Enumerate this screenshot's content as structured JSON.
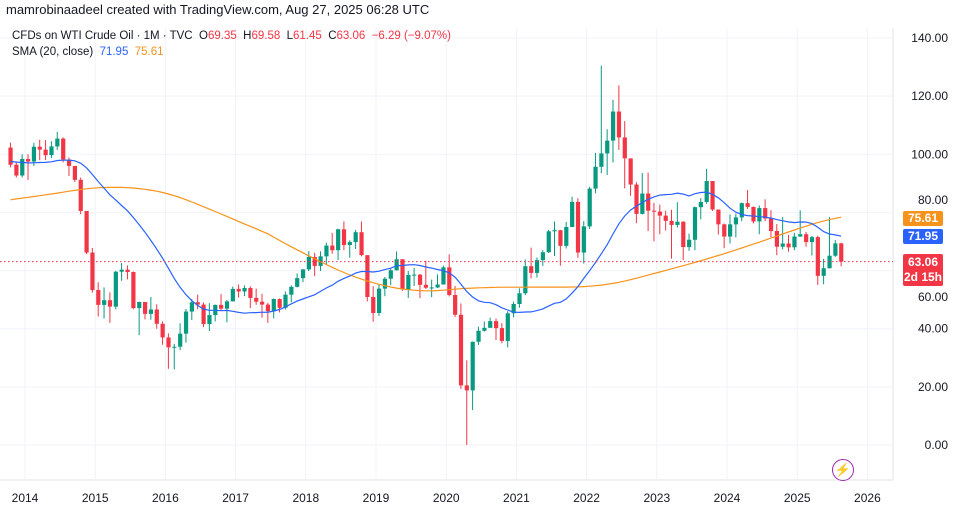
{
  "header": {
    "credit": "mamrobinaadeel created with TradingView.com, Aug 27, 2025 06:28 UTC"
  },
  "legend": {
    "symbol": "CFDs on WTI Crude Oil · 1M · TVC",
    "o_label": "O",
    "o": "69.35",
    "h_label": "H",
    "h": "69.58",
    "l_label": "L",
    "l": "61.45",
    "c_label": "C",
    "c": "63.06",
    "change": "−6.29 (−9.07%)",
    "sma_label": "SMA (20, close)",
    "sma_value": "71.95",
    "smoothing_value": "75.61"
  },
  "tags": {
    "smoothing": "75.61",
    "sma": "71.95",
    "last": "63.06",
    "countdown": "2d 15h"
  },
  "colors": {
    "up": "#089981",
    "down": "#f23645",
    "sma": "#2962ff",
    "smoothing": "#f7931a",
    "grid": "#f0f3fa"
  },
  "icons": {
    "bolt": "lightning-icon"
  },
  "chart_data": {
    "type": "candlestick",
    "interval": "1M",
    "start": "2013-10",
    "ylim": [
      0,
      140
    ],
    "yticks": [
      "0.00",
      "20.00",
      "40.00",
      "60.00",
      "80.00",
      "100.00",
      "120.00",
      "140.00"
    ],
    "xticks": [
      "2014",
      "2015",
      "2016",
      "2017",
      "2018",
      "2019",
      "2020",
      "2021",
      "2022",
      "2023",
      "2024",
      "2025",
      "2026"
    ],
    "grid": true,
    "last_price": 63.06,
    "ohlc": [
      [
        102.3,
        104,
        95.5,
        96.4
      ],
      [
        96.4,
        97.5,
        92,
        92.7
      ],
      [
        92.7,
        100,
        92,
        98.4
      ],
      [
        98.4,
        100,
        91.2,
        97.5
      ],
      [
        97.5,
        104,
        96,
        102.6
      ],
      [
        102.6,
        105,
        98,
        101.6
      ],
      [
        101.6,
        104.9,
        98,
        99.7
      ],
      [
        99.7,
        104.5,
        98.7,
        102.7
      ],
      [
        102.7,
        107.7,
        101.5,
        105.4
      ],
      [
        105.4,
        105.8,
        97.2,
        98.2
      ],
      [
        98.2,
        98.9,
        92.5,
        96
      ],
      [
        96,
        95.9,
        90.4,
        91.2
      ],
      [
        91.2,
        92,
        79.4,
        80.5
      ],
      [
        80.5,
        79.7,
        65.7,
        66.2
      ],
      [
        66.2,
        67.8,
        52.4,
        53.3
      ],
      [
        53.3,
        56,
        44.2,
        48.2
      ],
      [
        48.2,
        54.2,
        43.5,
        49.8
      ],
      [
        49.8,
        52.5,
        42,
        47.6
      ],
      [
        47.6,
        59.9,
        46.7,
        59.6
      ],
      [
        59.6,
        62.6,
        56.5,
        60.3
      ],
      [
        60.3,
        61.8,
        57,
        59.5
      ],
      [
        59.5,
        59.7,
        46.7,
        47.1
      ],
      [
        47.1,
        49.3,
        37.8,
        49.2
      ],
      [
        49.2,
        48.4,
        43.2,
        45.1
      ],
      [
        45.1,
        50.9,
        43.1,
        46.6
      ],
      [
        46.6,
        48.4,
        40,
        41.7
      ],
      [
        41.7,
        42.5,
        34.5,
        37
      ],
      [
        37,
        38.4,
        26.2,
        33.6
      ],
      [
        33.6,
        34.8,
        26,
        33.8
      ],
      [
        33.8,
        41.9,
        32.6,
        38.3
      ],
      [
        38.3,
        46.8,
        35.2,
        45.9
      ],
      [
        45.9,
        50.2,
        43,
        49.1
      ],
      [
        49.1,
        51.7,
        46.7,
        48.3
      ],
      [
        48.3,
        49,
        40.6,
        41.6
      ],
      [
        41.6,
        48.8,
        39.2,
        44.7
      ],
      [
        44.7,
        48.3,
        42.5,
        48.2
      ],
      [
        48.2,
        51.9,
        46.2,
        46.9
      ],
      [
        46.9,
        49.9,
        42.2,
        49.4
      ],
      [
        49.4,
        54.5,
        49.4,
        53.7
      ],
      [
        53.7,
        55.2,
        50.7,
        52.8
      ],
      [
        52.8,
        54.9,
        51.2,
        54
      ],
      [
        54,
        54.6,
        47.1,
        50.6
      ],
      [
        50.6,
        53.8,
        48.2,
        49.3
      ],
      [
        49.3,
        52,
        43.8,
        48.3
      ],
      [
        48.3,
        48.9,
        42,
        46
      ],
      [
        46,
        50.4,
        43.6,
        50.2
      ],
      [
        50.2,
        50.4,
        45.6,
        47.2
      ],
      [
        47.2,
        52.8,
        46.6,
        51.7
      ],
      [
        51.7,
        54.9,
        49.1,
        54.4
      ],
      [
        54.4,
        59,
        54.2,
        57.4
      ],
      [
        57.4,
        60.5,
        56,
        60.4
      ],
      [
        60.4,
        66.7,
        59.8,
        64.7
      ],
      [
        64.7,
        66.1,
        58.1,
        61.6
      ],
      [
        61.6,
        66.6,
        59.9,
        64.9
      ],
      [
        64.9,
        69.6,
        61.9,
        68.6
      ],
      [
        68.6,
        72.9,
        65.8,
        67
      ],
      [
        67,
        74.4,
        63.6,
        74.2
      ],
      [
        74.2,
        76.9,
        67,
        68.8
      ],
      [
        68.8,
        70.4,
        64.4,
        69.8
      ],
      [
        69.8,
        74,
        67.4,
        73.2
      ],
      [
        73.2,
        76.9,
        64.9,
        65.3
      ],
      [
        65.3,
        65.3,
        49.4,
        50.9
      ],
      [
        50.9,
        54.6,
        42.4,
        45.4
      ],
      [
        45.4,
        55.4,
        44.4,
        53.8
      ],
      [
        53.8,
        57.8,
        51.2,
        57.2
      ],
      [
        57.2,
        60.7,
        55,
        60.1
      ],
      [
        60.1,
        66.6,
        60,
        63.9
      ],
      [
        63.9,
        63.9,
        53,
        53.5
      ],
      [
        53.5,
        59.9,
        50.6,
        58.5
      ],
      [
        58.5,
        60.9,
        54.7,
        58.6
      ],
      [
        58.6,
        58.8,
        50.5,
        55.1
      ],
      [
        55.1,
        63.4,
        53.7,
        54.1
      ],
      [
        54.1,
        56.9,
        50.9,
        54.2
      ],
      [
        54.2,
        58.7,
        54,
        55.2
      ],
      [
        55.2,
        61.7,
        55.3,
        61.1
      ],
      [
        61.1,
        65.6,
        51.1,
        51.6
      ],
      [
        51.6,
        54.7,
        44,
        44.8
      ],
      [
        44.8,
        48.7,
        19.3,
        20.5
      ],
      [
        20.5,
        29.1,
        0,
        18.8
      ],
      [
        18.8,
        35.6,
        12,
        35.5
      ],
      [
        35.5,
        40.7,
        34.4,
        39.3
      ],
      [
        39.3,
        42.5,
        39,
        40.3
      ],
      [
        40.3,
        43.8,
        40.4,
        42.6
      ],
      [
        42.6,
        43.5,
        36.1,
        40.2
      ],
      [
        40.2,
        41.9,
        35,
        35.8
      ],
      [
        35.8,
        46,
        33.6,
        45.3
      ],
      [
        45.3,
        49.3,
        43.9,
        48.5
      ],
      [
        48.5,
        53.9,
        47.2,
        52.2
      ],
      [
        52.2,
        63.8,
        51.6,
        61.5
      ],
      [
        61.5,
        67.9,
        57.3,
        59.2
      ],
      [
        59.2,
        64.5,
        57.6,
        63.6
      ],
      [
        63.6,
        67,
        61.6,
        66.3
      ],
      [
        66.3,
        74,
        66.1,
        73.5
      ],
      [
        73.5,
        76.9,
        65,
        73.9
      ],
      [
        73.9,
        74,
        61.7,
        68.5
      ],
      [
        68.5,
        76.7,
        67.6,
        75
      ],
      [
        75,
        85.4,
        74.9,
        83.6
      ],
      [
        83.6,
        84.9,
        64.4,
        66.2
      ],
      [
        66.2,
        77,
        62.4,
        75.2
      ],
      [
        75.2,
        88.8,
        74.3,
        88.2
      ],
      [
        88.2,
        100.5,
        86.6,
        95.7
      ],
      [
        95.7,
        130.5,
        93.5,
        100.3
      ],
      [
        100.3,
        108.6,
        92.9,
        104.7
      ],
      [
        104.7,
        118.7,
        97.2,
        114.7
      ],
      [
        114.7,
        123.7,
        101.5,
        105.8
      ],
      [
        105.8,
        111.4,
        88.3,
        98.6
      ],
      [
        98.6,
        97.6,
        85.7,
        89.6
      ],
      [
        89.6,
        90.4,
        76.3,
        79.5
      ],
      [
        79.5,
        93.6,
        79.3,
        86.5
      ],
      [
        86.5,
        93.7,
        73.6,
        80.6
      ],
      [
        80.6,
        83.3,
        70.1,
        80.3
      ],
      [
        80.3,
        82.7,
        72.5,
        78.9
      ],
      [
        78.9,
        80.6,
        73.8,
        77.1
      ],
      [
        77.1,
        80.9,
        64.1,
        75.7
      ],
      [
        75.7,
        83.5,
        74.8,
        76.8
      ],
      [
        76.8,
        77,
        63.6,
        68.1
      ],
      [
        68.1,
        72.7,
        66.8,
        70.6
      ],
      [
        70.6,
        82,
        67,
        81.8
      ],
      [
        81.8,
        84.9,
        77.6,
        83.6
      ],
      [
        83.6,
        95,
        83,
        90.8
      ],
      [
        90.8,
        90.8,
        80.5,
        81
      ],
      [
        81,
        81,
        72.4,
        75.9
      ],
      [
        75.9,
        76.2,
        67.7,
        71.7
      ],
      [
        71.7,
        79.3,
        69.3,
        75.9
      ],
      [
        75.9,
        79.6,
        71.4,
        78.3
      ],
      [
        78.3,
        83.4,
        77,
        83.2
      ],
      [
        83.2,
        87.7,
        81.2,
        81.9
      ],
      [
        81.9,
        82,
        76.2,
        76.9
      ],
      [
        76.9,
        82.4,
        72.5,
        81.5
      ],
      [
        81.5,
        84.5,
        77,
        77.9
      ],
      [
        77.9,
        80.8,
        71.5,
        73.6
      ],
      [
        73.6,
        76,
        65.3,
        68.2
      ],
      [
        68.2,
        78.4,
        67.3,
        69.3
      ],
      [
        69.3,
        72.3,
        66.5,
        68
      ],
      [
        68,
        73,
        67,
        71.7
      ],
      [
        71.7,
        80.7,
        71.6,
        72.5
      ],
      [
        72.5,
        73.3,
        68.2,
        69.8
      ],
      [
        69.8,
        71.9,
        65.2,
        71.5
      ],
      [
        71.5,
        72,
        55.1,
        58.2
      ],
      [
        58.2,
        64,
        55.3,
        60.8
      ],
      [
        60.8,
        78.4,
        60.7,
        65.1
      ],
      [
        65.1,
        70.5,
        64.7,
        69.35
      ],
      [
        69.35,
        69.58,
        61.45,
        63.06
      ]
    ]
  }
}
